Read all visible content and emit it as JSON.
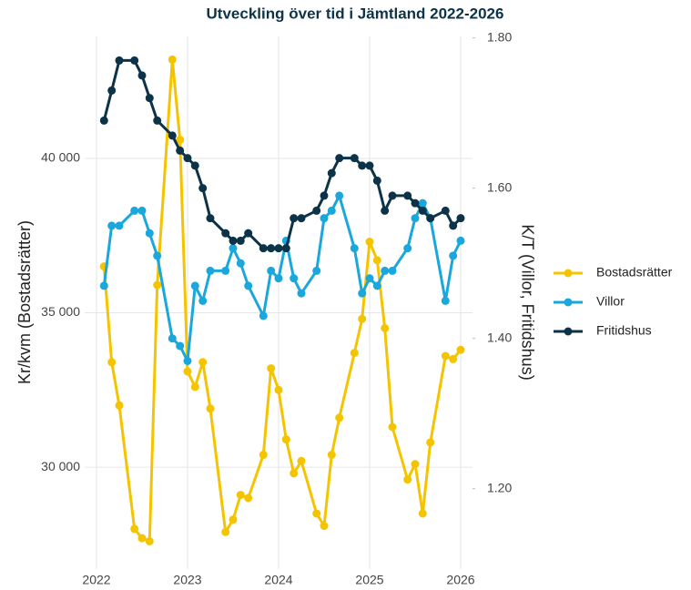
{
  "chart_data": {
    "type": "line",
    "title": "Utveckling över tid i Jämtland 2022-2026",
    "ylabel": "Kr/kvm (Bostadsrätter)",
    "y2label": "K/T (Villor, Fritidshus)",
    "x": [
      2022.083,
      2022.167,
      2022.25,
      2022.417,
      2022.5,
      2022.583,
      2022.667,
      2022.833,
      2022.917,
      2023,
      2023.083,
      2023.167,
      2023.25,
      2023.417,
      2023.5,
      2023.583,
      2023.667,
      2023.833,
      2023.917,
      2024,
      2024.083,
      2024.167,
      2024.25,
      2024.417,
      2024.5,
      2024.583,
      2024.667,
      2024.833,
      2024.917,
      2025,
      2025.083,
      2025.167,
      2025.25,
      2025.417,
      2025.5,
      2025.583,
      2025.667,
      2025.833,
      2025.917,
      2026
    ],
    "series": [
      {
        "name": "Bostadsrätter",
        "color": "#f5c400",
        "values": [
          36500,
          33400,
          32000,
          28000,
          27700,
          27600,
          35900,
          43200,
          40600,
          33100,
          32600,
          33400,
          31900,
          27900,
          28300,
          29100,
          29000,
          30400,
          33200,
          32500,
          30900,
          29800,
          30200,
          28500,
          28100,
          30400,
          31600,
          33700,
          34800,
          37300,
          36700,
          34500,
          31300,
          29600,
          30100,
          28500,
          30800,
          33600,
          33500,
          33800
        ]
      },
      {
        "name": "Villor",
        "color": "#1aa7dc",
        "axis": "y2",
        "values": [
          1.47,
          1.55,
          1.55,
          1.57,
          1.57,
          1.54,
          1.51,
          1.4,
          1.39,
          1.37,
          1.47,
          1.45,
          1.49,
          1.49,
          1.52,
          1.5,
          1.47,
          1.43,
          1.49,
          1.48,
          1.53,
          1.48,
          1.46,
          1.49,
          1.56,
          1.57,
          1.59,
          1.52,
          1.46,
          1.48,
          1.47,
          1.49,
          1.49,
          1.52,
          1.56,
          1.58,
          1.56,
          1.45,
          1.51,
          1.53
        ]
      },
      {
        "name": "Fritidshus",
        "color": "#0d3349",
        "axis": "y2",
        "values": [
          1.69,
          1.73,
          1.77,
          1.77,
          1.75,
          1.72,
          1.69,
          1.67,
          1.65,
          1.64,
          1.63,
          1.6,
          1.56,
          1.54,
          1.53,
          1.53,
          1.54,
          1.52,
          1.52,
          1.52,
          1.52,
          1.56,
          1.56,
          1.57,
          1.59,
          1.62,
          1.64,
          1.64,
          1.63,
          1.63,
          1.61,
          1.57,
          1.59,
          1.59,
          1.58,
          1.57,
          1.56,
          1.57,
          1.55,
          1.56
        ]
      }
    ],
    "xlim": [
      2021.87,
      2026.13
    ],
    "xticks": [
      2022,
      2023,
      2024,
      2025,
      2026
    ],
    "ylim": [
      26700,
      43950
    ],
    "yticks": [
      {
        "value": 30000,
        "label": "30 000"
      },
      {
        "value": 35000,
        "label": "35 000"
      },
      {
        "value": 40000,
        "label": "40 000"
      }
    ],
    "y2lim": [
      1.093,
      1.802
    ],
    "y2ticks": [
      {
        "value": 1.2,
        "label": "1.20"
      },
      {
        "value": 1.4,
        "label": "1.40"
      },
      {
        "value": 1.6,
        "label": "1.60"
      },
      {
        "value": 1.8,
        "label": "1.80"
      }
    ],
    "grid": true,
    "legend": "right"
  }
}
